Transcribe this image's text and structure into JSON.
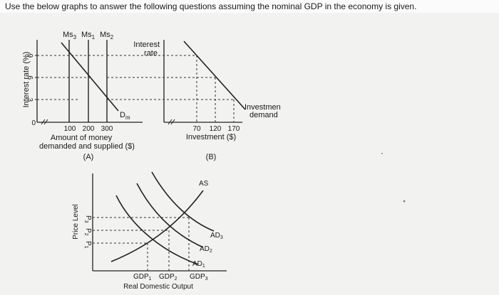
{
  "question": "Use the below graphs to answer the following questions assuming the nominal GDP in the economy is given.",
  "graph_a": {
    "y_axis_label": "Interest rate (%)",
    "y_ticks": [
      "9",
      "6",
      "3",
      "0"
    ],
    "supply_labels": {
      "ms3": "Ms",
      "ms3_sub": "3",
      "ms1": "Ms",
      "ms1_sub": "1",
      "ms2": "Ms",
      "ms2_sub": "2"
    },
    "demand_label": "D",
    "demand_sub": "m",
    "x_ticks": [
      "100",
      "200",
      "300"
    ],
    "x_label_line1": "Amount of money",
    "x_label_line2": "demanded and supplied ($)",
    "panel_label": "(A)"
  },
  "graph_b": {
    "y_label_line1": "Interest",
    "y_label_line2": "rate",
    "x_ticks": [
      "70",
      "120",
      "170"
    ],
    "x_label": "Investment ($)",
    "curve_label_line1": "Investmen",
    "curve_label_line2": "demand",
    "panel_label": "(B)"
  },
  "graph_c": {
    "y_axis_label": "Price Level",
    "y_ticks": [
      {
        "label": "P",
        "sub": "3"
      },
      {
        "label": "P",
        "sub": "2"
      },
      {
        "label": "P",
        "sub": "1"
      }
    ],
    "as_label": "AS",
    "ad_labels": [
      {
        "label": "AD",
        "sub": "3"
      },
      {
        "label": "AD",
        "sub": "2"
      },
      {
        "label": "AD",
        "sub": "1"
      }
    ],
    "x_ticks": [
      {
        "label": "GDP",
        "sub": "1"
      },
      {
        "label": "GDP",
        "sub": "2"
      },
      {
        "label": "GDP",
        "sub": "3"
      }
    ],
    "x_label": "Real Domestic Output"
  }
}
